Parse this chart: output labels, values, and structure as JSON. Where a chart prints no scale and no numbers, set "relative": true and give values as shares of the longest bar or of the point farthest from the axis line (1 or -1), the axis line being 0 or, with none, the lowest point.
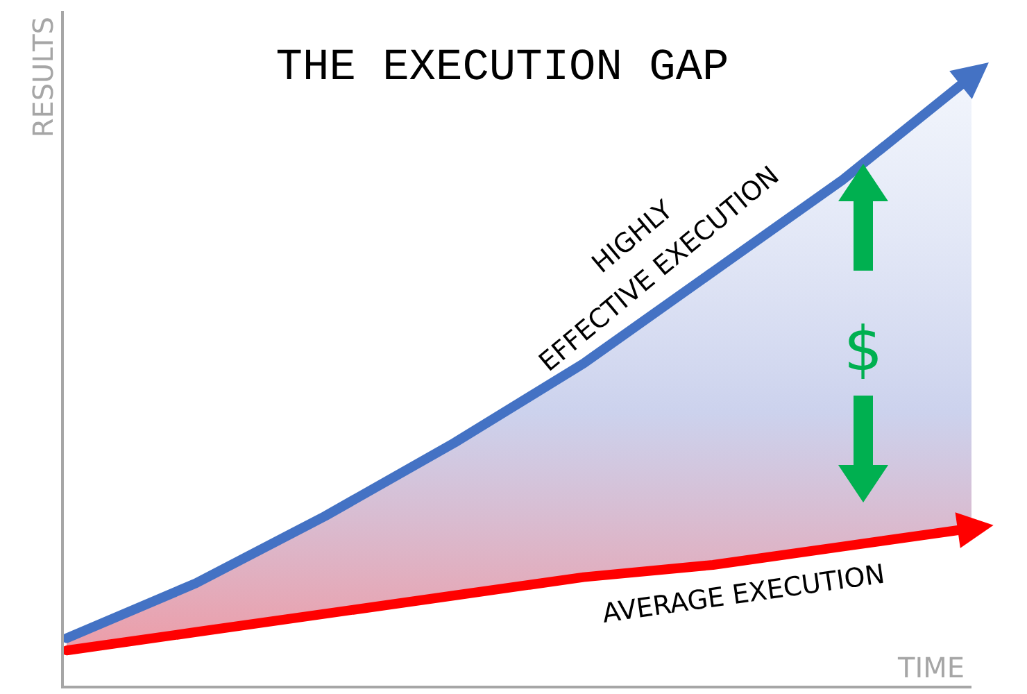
{
  "chart_data": {
    "type": "line",
    "title": "THE EXECUTION GAP",
    "xlabel": "TIME",
    "ylabel": "RESULTS",
    "annotations": [
      "$"
    ],
    "relative": true,
    "legend": false,
    "grid": false,
    "marker": "none",
    "categories": [
      null,
      null,
      null,
      null,
      null,
      null,
      null,
      null
    ],
    "series": [
      {
        "name": "HIGHLY\nEFFECTIVE EXECUTION",
        "color": "#4472c4",
        "values": [
          0.08,
          0.17,
          0.28,
          0.4,
          0.53,
          0.68,
          0.83,
          1
        ],
        "lower": [
          0.06,
          0.09,
          0.12,
          0.15,
          0.18,
          0.2,
          0.23,
          0.26
        ],
        "upper": [
          0.08,
          0.17,
          0.28,
          0.4,
          0.53,
          0.68,
          0.83,
          1
        ]
      },
      {
        "name": "AVERAGE EXECUTION",
        "color": "#ff0000",
        "values": [
          0.06,
          0.09,
          0.12,
          0.15,
          0.18,
          0.2,
          0.23,
          0.26
        ]
      }
    ]
  }
}
